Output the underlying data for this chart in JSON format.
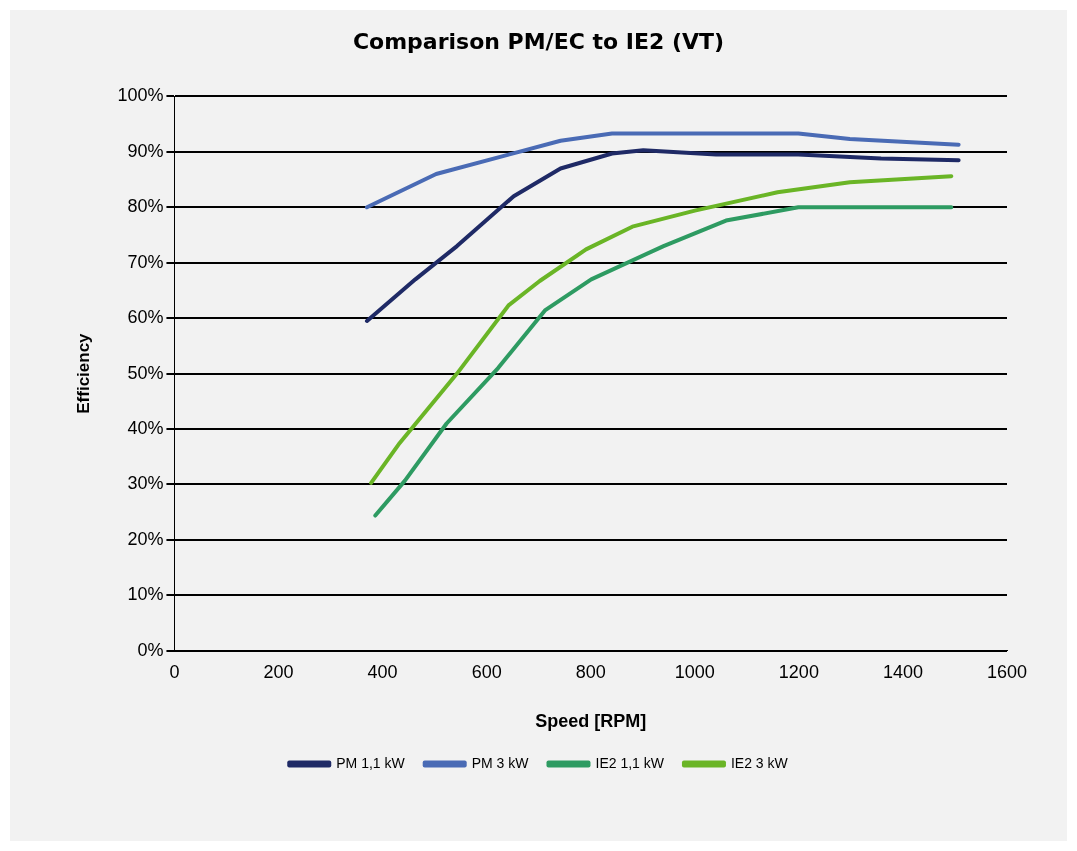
{
  "chart_data": {
    "type": "line",
    "title": "Comparison PM/EC to IE2 (VT)",
    "xlabel": "Speed [RPM]",
    "ylabel": "Efficiency",
    "xlim": [
      0,
      1600
    ],
    "xticks": [
      0,
      200,
      400,
      600,
      800,
      1000,
      1200,
      1400,
      1600
    ],
    "ylim": [
      0,
      100
    ],
    "yticks": [
      {
        "value": 0,
        "label": "0%"
      },
      {
        "value": 10,
        "label": "10%"
      },
      {
        "value": 20,
        "label": "20%"
      },
      {
        "value": 30,
        "label": "30%"
      },
      {
        "value": 40,
        "label": "40%"
      },
      {
        "value": 50,
        "label": "50%"
      },
      {
        "value": 60,
        "label": "60%"
      },
      {
        "value": 70,
        "label": "70%"
      },
      {
        "value": 80,
        "label": "80%"
      },
      {
        "value": 90,
        "label": "90%"
      },
      {
        "value": 100,
        "label": "100%"
      }
    ],
    "grid": "y",
    "legend": "bottom",
    "marker": "none",
    "line_style": "solid",
    "series": [
      {
        "name": "PM 1,1 kW",
        "color": "#1f2a66",
        "x": [
          370,
          463,
          543,
          652,
          742,
          841,
          901,
          1041,
          1199,
          1358,
          1507
        ],
        "values": [
          59.5,
          67,
          73,
          82,
          87,
          89.7,
          90.3,
          89.5,
          89.5,
          88.8,
          88.5
        ]
      },
      {
        "name": "PM 3 kW",
        "color": "#4a6bb5",
        "x": [
          370,
          503,
          662,
          742,
          841,
          1199,
          1298,
          1507
        ],
        "values": [
          80,
          86,
          90,
          92,
          93.3,
          93.3,
          92.3,
          91.3
        ]
      },
      {
        "name": "IE2 1,1 kW",
        "color": "#2e9b62",
        "x": [
          386,
          443,
          523,
          622,
          712,
          801,
          940,
          1060,
          1199,
          1493
        ],
        "values": [
          24.4,
          30.7,
          41,
          51,
          61.4,
          67,
          73,
          77.6,
          80,
          80
        ]
      },
      {
        "name": "IE2 3 kW",
        "color": "#6ab526",
        "x": [
          378,
          433,
          543,
          642,
          702,
          791,
          880,
          1000,
          1159,
          1298,
          1493
        ],
        "values": [
          30.3,
          37.5,
          50,
          62.3,
          66.7,
          72.4,
          76.5,
          79.4,
          82.7,
          84.5,
          85.6
        ]
      }
    ]
  }
}
